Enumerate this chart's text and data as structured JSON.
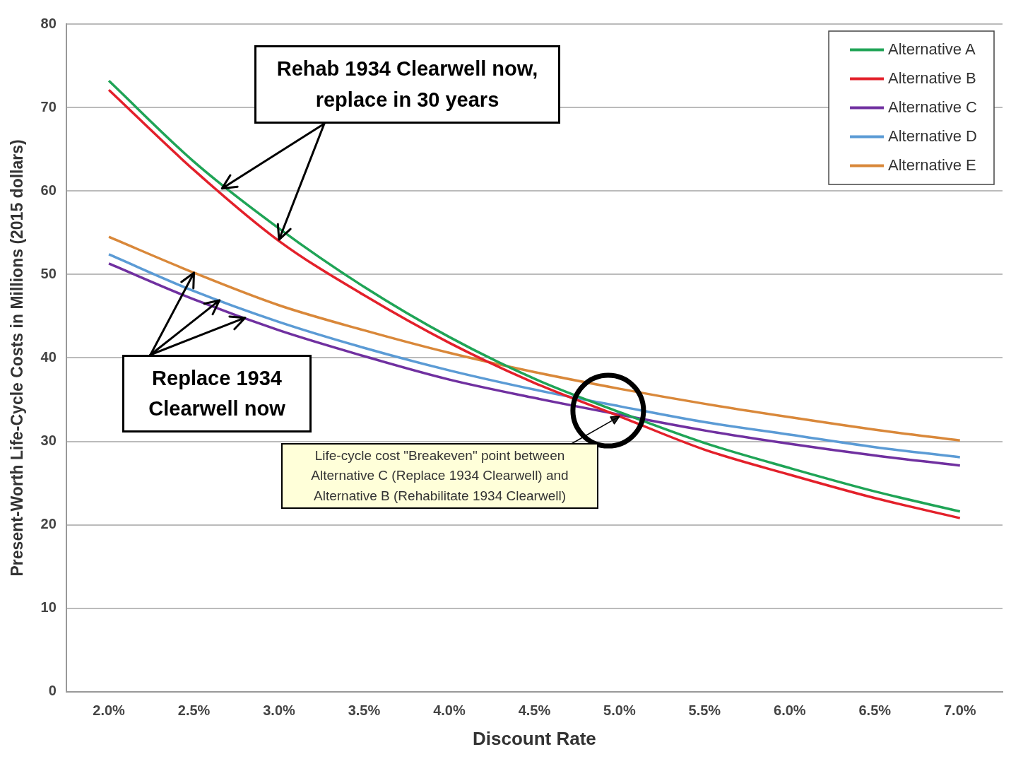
{
  "chart_data": {
    "type": "line",
    "xlabel": "Discount Rate",
    "ylabel": "Present-Worth Life-Cycle Costs in Millions (2015 dollars)",
    "categories": [
      "2.0%",
      "2.5%",
      "3.0%",
      "3.5%",
      "4.0%",
      "4.5%",
      "5.0%",
      "5.5%",
      "6.0%",
      "6.5%",
      "7.0%"
    ],
    "series": [
      {
        "name": "Alternative A",
        "color": "#1fa456",
        "values": [
          73.2,
          63.5,
          55.5,
          48.5,
          42.5,
          37.5,
          33.5,
          29.8,
          26.8,
          24.0,
          21.6
        ]
      },
      {
        "name": "Alternative B",
        "color": "#e3202a",
        "values": [
          72.1,
          62.5,
          54.0,
          47.5,
          41.8,
          37.0,
          33.0,
          29.0,
          26.0,
          23.2,
          20.8
        ]
      },
      {
        "name": "Alternative C",
        "color": "#7030a0",
        "values": [
          51.3,
          47.0,
          43.3,
          40.2,
          37.4,
          35.2,
          33.2,
          31.3,
          29.7,
          28.3,
          27.1
        ]
      },
      {
        "name": "Alternative D",
        "color": "#5b9bd5",
        "values": [
          52.4,
          48.0,
          44.3,
          41.2,
          38.5,
          36.2,
          34.2,
          32.3,
          30.8,
          29.3,
          28.1
        ]
      },
      {
        "name": "Alternative E",
        "color": "#d9883a",
        "values": [
          54.5,
          50.2,
          46.3,
          43.3,
          40.6,
          38.3,
          36.3,
          34.5,
          32.9,
          31.4,
          30.1
        ]
      }
    ],
    "ylim": [
      0,
      80
    ],
    "yticks": [
      0,
      10,
      20,
      30,
      40,
      50,
      60,
      70,
      80
    ],
    "grid": "y",
    "legend": "top right",
    "marker": "none",
    "line_style": "solid",
    "annotations": [
      {
        "text": "Rehab 1934 Clearwell now, replace in 30 years",
        "x": "3.0%",
        "y": 54
      },
      {
        "text": "Replace 1934 Clearwell now",
        "x": "2.5%",
        "y": 50.2
      },
      {
        "text": "Life-cycle cost \"Breakeven\" point between Alternative C (Replace 1934 Clearwell) and Alternative B (Rehabilitate 1934 Clearwell)",
        "x": "5.0%",
        "y": 33
      }
    ]
  }
}
